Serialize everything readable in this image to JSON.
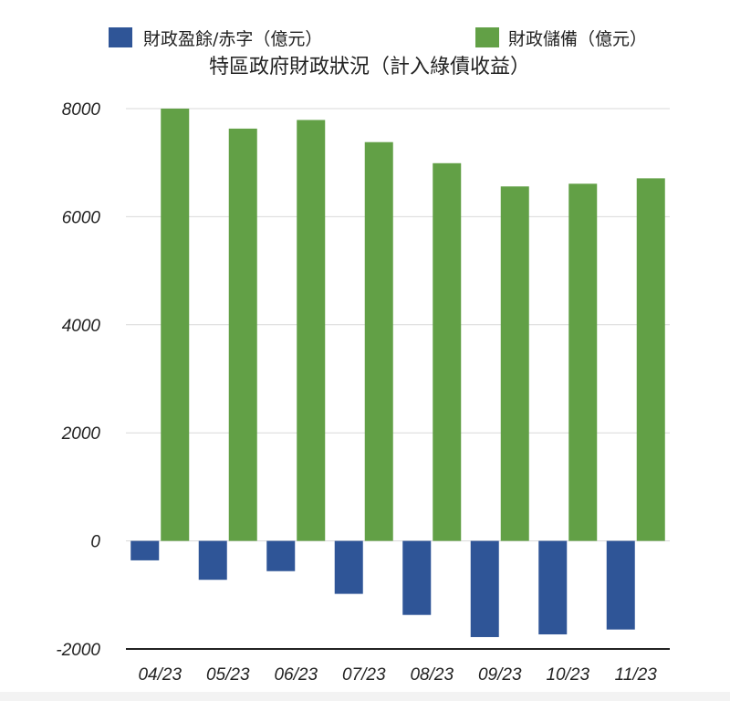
{
  "chart_data": {
    "type": "bar",
    "title": "特區政府財政狀況（計入綠債收益）",
    "xlabel": "",
    "ylabel": "",
    "categories": [
      "04/23",
      "05/23",
      "06/23",
      "07/23",
      "08/23",
      "09/23",
      "10/23",
      "11/23"
    ],
    "series": [
      {
        "name": "財政盈餘/赤字（億元）",
        "color": "#2f5597",
        "values": [
          -360,
          -720,
          -560,
          -980,
          -1370,
          -1780,
          -1730,
          -1640
        ]
      },
      {
        "name": "財政儲備（億元）",
        "color": "#62a046",
        "values": [
          8000,
          7630,
          7790,
          7380,
          6990,
          6560,
          6610,
          6710
        ]
      }
    ],
    "ylim": [
      -2000,
      8000
    ],
    "yticks": [
      "8000",
      "6000",
      "4000",
      "2000",
      "0",
      "-2000"
    ],
    "grid": true,
    "legend_position": "top"
  }
}
